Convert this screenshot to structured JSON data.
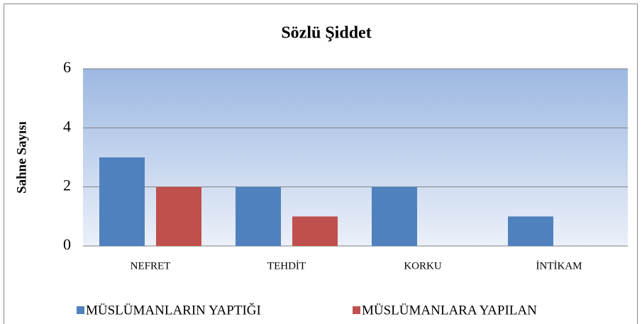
{
  "chart_data": {
    "type": "bar",
    "title": "Sözlü Şiddet",
    "y_label": "Sahne Sayısı",
    "categories": [
      "NEFRET",
      "TEHDİT",
      "KORKU",
      "İNTİKAM"
    ],
    "series": [
      {
        "name": "MÜSLÜMANLARIN YAPTIĞI",
        "color": "#4f81bd",
        "values": [
          3,
          2,
          2,
          1
        ]
      },
      {
        "name": "MÜSLÜMANLARA YAPILAN",
        "color": "#c0504d",
        "values": [
          2,
          1,
          0,
          0
        ]
      }
    ],
    "ylim": [
      0,
      6
    ],
    "yticks": [
      0,
      2,
      4,
      6
    ],
    "grid": true,
    "legend": "bottom"
  }
}
